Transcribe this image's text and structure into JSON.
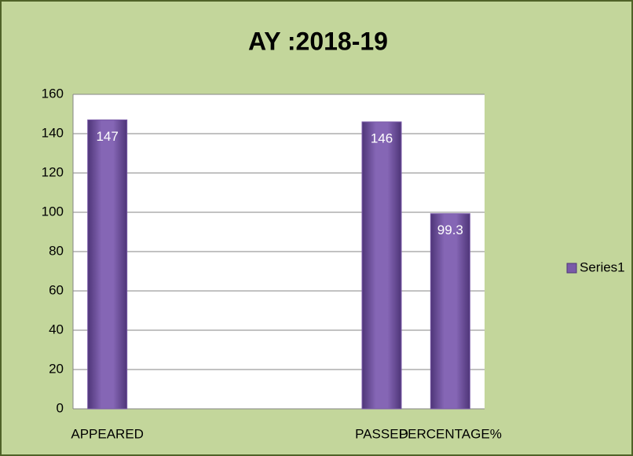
{
  "chart_data": {
    "type": "bar",
    "title": "AY :2018-19",
    "categories": [
      "APPEARED",
      null,
      null,
      null,
      "PASSED",
      "PERCENTAGE%"
    ],
    "series": [
      {
        "name": "Series1",
        "color": "#7a5aa8",
        "values": [
          147,
          null,
          null,
          null,
          146,
          99.3
        ]
      }
    ],
    "ylim": [
      0,
      160
    ],
    "yticks": [
      0,
      20,
      40,
      60,
      80,
      100,
      120,
      140,
      160
    ],
    "grid": true,
    "legend": "right"
  }
}
